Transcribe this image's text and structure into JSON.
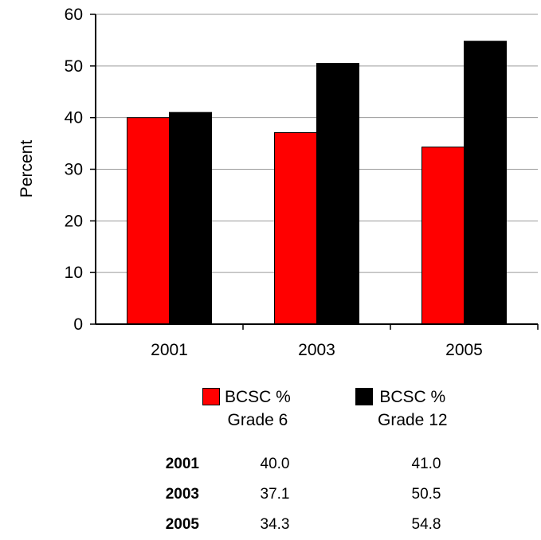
{
  "chart_data": {
    "type": "bar",
    "categories": [
      "2001",
      "2003",
      "2005"
    ],
    "series": [
      {
        "name": "BCSC %\nGrade 6",
        "color": "#ff0000",
        "values": [
          40.0,
          37.1,
          34.3
        ]
      },
      {
        "name": "BCSC %\nGrade 12",
        "color": "#000000",
        "values": [
          41.0,
          50.5,
          54.8
        ]
      }
    ],
    "ylabel": "Percent",
    "xlabel": "",
    "ylim": [
      0,
      60
    ],
    "yticks": [
      0,
      10,
      20,
      30,
      40,
      50,
      60
    ],
    "grid": true,
    "legend": "bottom"
  },
  "table": {
    "rows": [
      {
        "year": "2001",
        "grade6": "40.0",
        "grade12": "41.0"
      },
      {
        "year": "2003",
        "grade6": "37.1",
        "grade12": "50.5"
      },
      {
        "year": "2005",
        "grade6": "34.3",
        "grade12": "54.8"
      }
    ]
  }
}
